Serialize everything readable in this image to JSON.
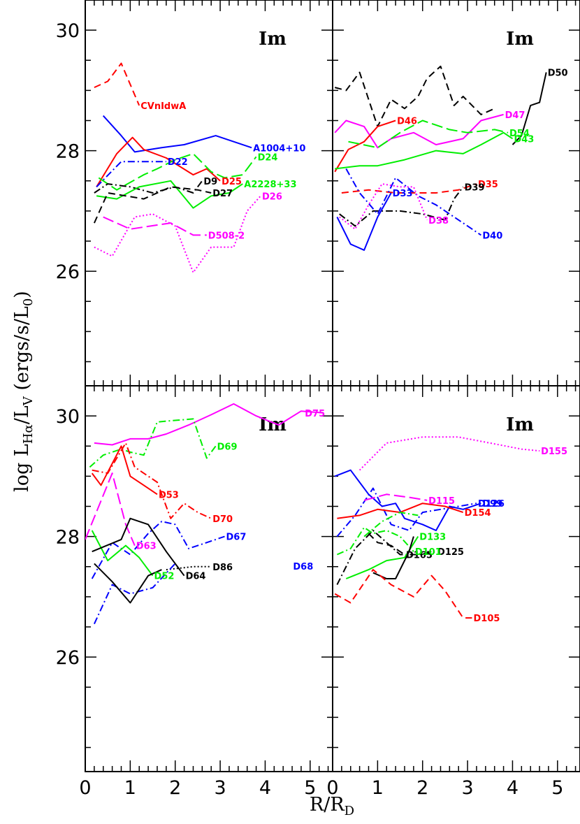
{
  "figure": {
    "ylabel": "log L_Hα/L_V (ergs/s/L_0)",
    "xlabel": "R/R_D"
  },
  "colors": {
    "black": "#000000",
    "red": "#ff0000",
    "blue": "#0000ff",
    "green": "#00ee00",
    "magenta": "#ff00ff"
  },
  "chart_data": [
    {
      "type": "line",
      "panel_label": "Im",
      "xlim": [
        0,
        5.5
      ],
      "ylim": [
        24.1,
        30.5
      ],
      "xticks": [
        "0",
        "1",
        "2",
        "3",
        "4",
        "5"
      ],
      "yticks": [
        "26",
        "28",
        "30"
      ],
      "series": [
        {
          "name": "CVnIdwA",
          "color": "red",
          "dash": "dashed",
          "x": [
            0.2,
            0.5,
            0.8,
            1.2
          ],
          "y": [
            29.05,
            29.15,
            29.45,
            28.75
          ]
        },
        {
          "name": "A1004+10",
          "color": "blue",
          "dash": "solid",
          "x": [
            0.4,
            0.8,
            1.1,
            1.7,
            2.2,
            2.9,
            3.7
          ],
          "y": [
            28.58,
            28.25,
            27.98,
            28.05,
            28.1,
            28.25,
            28.05
          ]
        },
        {
          "name": "D25",
          "color": "red",
          "dash": "solid",
          "x": [
            0.25,
            0.7,
            1.05,
            1.3,
            1.8,
            2.4,
            2.7,
            3.0
          ],
          "y": [
            27.4,
            27.95,
            28.22,
            28.02,
            27.88,
            27.6,
            27.7,
            27.5
          ]
        },
        {
          "name": "D22",
          "color": "blue",
          "dash": "dashdot",
          "x": [
            0.25,
            0.8,
            1.4,
            1.8
          ],
          "y": [
            27.4,
            27.82,
            27.82,
            27.82
          ]
        },
        {
          "name": "D24",
          "color": "green",
          "dash": "longdash",
          "x": [
            0.3,
            0.7,
            1.3,
            1.6,
            2.0,
            2.4,
            2.8,
            3.1,
            3.5,
            3.8
          ],
          "y": [
            27.55,
            27.35,
            27.6,
            27.7,
            27.85,
            27.95,
            27.65,
            27.55,
            27.6,
            27.9
          ]
        },
        {
          "name": "D9",
          "color": "black",
          "dash": "dashdot",
          "x": [
            0.2,
            0.5,
            1.0,
            1.5,
            2.0,
            2.4,
            2.6
          ],
          "y": [
            27.3,
            27.45,
            27.4,
            27.3,
            27.4,
            27.3,
            27.5
          ]
        },
        {
          "name": "A2228+33",
          "color": "green",
          "dash": "solid",
          "x": [
            0.25,
            0.7,
            1.2,
            1.9,
            2.4,
            2.8,
            3.2,
            3.5
          ],
          "y": [
            27.25,
            27.2,
            27.4,
            27.5,
            27.05,
            27.25,
            27.3,
            27.45
          ]
        },
        {
          "name": "D27",
          "color": "black",
          "dash": "dashed",
          "x": [
            0.2,
            0.5,
            0.9,
            1.3,
            1.9,
            2.5,
            2.8
          ],
          "y": [
            26.8,
            27.3,
            27.25,
            27.2,
            27.4,
            27.35,
            27.3
          ]
        },
        {
          "name": "D26",
          "color": "magenta",
          "dash": "dotted",
          "x": [
            0.2,
            0.6,
            1.1,
            1.5,
            2.0,
            2.4,
            2.8,
            3.3,
            3.6,
            3.9
          ],
          "y": [
            26.4,
            26.25,
            26.9,
            26.95,
            26.75,
            25.98,
            26.4,
            26.4,
            27.0,
            27.25
          ]
        },
        {
          "name": "D508-2",
          "color": "magenta",
          "dash": "longdash",
          "x": [
            0.4,
            1.0,
            1.9,
            2.4,
            2.7
          ],
          "y": [
            26.9,
            26.7,
            26.8,
            26.6,
            26.6
          ]
        }
      ]
    },
    {
      "type": "line",
      "panel_label": "Im",
      "xlim": [
        0,
        5.5
      ],
      "ylim": [
        24.1,
        30.5
      ],
      "xticks": [
        "0",
        "1",
        "2",
        "3",
        "4",
        "5"
      ],
      "yticks": [],
      "series": [
        {
          "name": "D50",
          "color": "black",
          "dash": "solid",
          "x": [
            4.0,
            4.2,
            4.4,
            4.6,
            4.75
          ],
          "y": [
            28.1,
            28.25,
            28.75,
            28.8,
            29.3
          ]
        },
        {
          "name": "",
          "color": "black",
          "dash": "dashed",
          "x": [
            0.05,
            0.3,
            0.6,
            1.0,
            1.3,
            1.6,
            1.9,
            2.1,
            2.4,
            2.7,
            2.9,
            3.3,
            3.6
          ],
          "y": [
            29.05,
            29.0,
            29.3,
            28.4,
            28.85,
            28.7,
            28.9,
            29.2,
            29.4,
            28.75,
            28.9,
            28.6,
            28.7
          ]
        },
        {
          "name": "D47",
          "color": "magenta",
          "dash": "solid",
          "x": [
            0.05,
            0.3,
            0.7,
            1.0,
            1.3,
            1.8,
            2.3,
            2.9,
            3.3,
            3.8
          ],
          "y": [
            28.3,
            28.5,
            28.4,
            28.05,
            28.2,
            28.3,
            28.1,
            28.2,
            28.5,
            28.6
          ]
        },
        {
          "name": "D46",
          "color": "red",
          "dash": "solid",
          "x": [
            0.05,
            0.35,
            0.7,
            1.0,
            1.4
          ],
          "y": [
            27.65,
            28.02,
            28.15,
            28.4,
            28.5
          ]
        },
        {
          "name": "D54",
          "color": "green",
          "dash": "longdash",
          "x": [
            0.35,
            1.0,
            1.5,
            2.0,
            2.6,
            3.0,
            3.6,
            3.9
          ],
          "y": [
            28.15,
            28.05,
            28.3,
            28.5,
            28.35,
            28.3,
            28.35,
            28.3
          ]
        },
        {
          "name": "D43",
          "color": "green",
          "dash": "solid",
          "x": [
            0.05,
            0.6,
            1.0,
            1.6,
            2.3,
            2.9,
            3.3,
            3.8,
            4.0
          ],
          "y": [
            27.7,
            27.75,
            27.75,
            27.85,
            28.0,
            27.95,
            28.1,
            28.3,
            28.2
          ]
        },
        {
          "name": "D35",
          "color": "red",
          "dash": "dashed",
          "x": [
            0.2,
            0.8,
            1.4,
            1.9,
            2.3,
            2.8,
            3.2
          ],
          "y": [
            27.3,
            27.35,
            27.3,
            27.3,
            27.3,
            27.35,
            27.45
          ]
        },
        {
          "name": "D39",
          "color": "black",
          "dash": "dashdot",
          "x": [
            0.15,
            0.5,
            0.9,
            1.5,
            2.0,
            2.5,
            2.7,
            2.9
          ],
          "y": [
            26.95,
            26.75,
            27.0,
            27.0,
            26.95,
            26.85,
            27.2,
            27.4
          ]
        },
        {
          "name": "D33",
          "color": "blue",
          "dash": "solid",
          "x": [
            0.1,
            0.4,
            0.7,
            1.0,
            1.3
          ],
          "y": [
            26.9,
            26.45,
            26.35,
            26.9,
            27.3
          ]
        },
        {
          "name": "D40",
          "color": "blue",
          "dash": "dashdot",
          "x": [
            0.3,
            0.6,
            1.0,
            1.4,
            1.9,
            2.3,
            2.9,
            3.3
          ],
          "y": [
            27.7,
            27.3,
            26.95,
            27.55,
            27.25,
            27.1,
            26.8,
            26.6
          ]
        },
        {
          "name": "D38",
          "color": "magenta",
          "dash": "dotted",
          "x": [
            0.15,
            0.5,
            0.8,
            1.1,
            1.5,
            1.8,
            2.1
          ],
          "y": [
            26.9,
            26.7,
            27.1,
            27.45,
            27.4,
            27.4,
            26.85
          ]
        }
      ]
    },
    {
      "type": "line",
      "panel_label": "Im",
      "xlim": [
        0,
        5.5
      ],
      "ylim": [
        24.1,
        30.5
      ],
      "xticks": [
        "0",
        "1",
        "2",
        "3",
        "4",
        "5"
      ],
      "yticks": [
        "26",
        "28",
        "30"
      ],
      "series": [
        {
          "name": "D75",
          "color": "magenta",
          "dash": "solid",
          "x": [
            0.2,
            0.6,
            1.0,
            1.4,
            1.8,
            2.3,
            2.8,
            3.3,
            3.8,
            4.3,
            4.8,
            5.3
          ],
          "y": [
            29.55,
            29.52,
            29.62,
            29.62,
            29.7,
            29.85,
            30.02,
            30.2,
            30.0,
            29.85,
            30.08,
            30.05
          ]
        },
        {
          "name": "D69",
          "color": "green",
          "dash": "dashdot",
          "x": [
            0.1,
            0.4,
            0.8,
            1.0,
            1.3,
            1.6,
            1.9,
            2.4,
            2.7,
            2.9
          ],
          "y": [
            29.15,
            29.35,
            29.45,
            29.4,
            29.35,
            29.9,
            29.92,
            29.95,
            29.3,
            29.5
          ]
        },
        {
          "name": "D53",
          "color": "red",
          "dash": "solid",
          "x": [
            0.15,
            0.35,
            0.8,
            1.0,
            1.3,
            1.6
          ],
          "y": [
            29.05,
            28.85,
            29.5,
            29.0,
            28.85,
            28.7
          ]
        },
        {
          "name": "D70",
          "color": "red",
          "dash": "dashdot",
          "x": [
            0.15,
            0.5,
            0.9,
            1.1,
            1.6,
            1.9,
            2.2,
            2.5,
            2.8
          ],
          "y": [
            29.1,
            29.05,
            29.55,
            29.15,
            28.9,
            28.3,
            28.55,
            28.4,
            28.3
          ]
        },
        {
          "name": "D63",
          "color": "magenta",
          "dash": "longdash",
          "x": [
            0.0,
            0.3,
            0.6,
            0.9,
            1.1
          ],
          "y": [
            27.95,
            28.5,
            29.05,
            28.2,
            27.85
          ]
        },
        {
          "name": "D67",
          "color": "blue",
          "dash": "dashdot",
          "x": [
            0.15,
            0.6,
            1.0,
            1.4,
            1.7,
            2.0,
            2.3,
            2.7,
            3.1
          ],
          "y": [
            27.3,
            27.9,
            27.7,
            28.05,
            28.25,
            28.2,
            27.8,
            27.9,
            28.0
          ]
        },
        {
          "name": "D52",
          "color": "green",
          "dash": "solid",
          "x": [
            0.15,
            0.5,
            0.9,
            1.2,
            1.5
          ],
          "y": [
            28.1,
            27.6,
            27.85,
            27.65,
            27.35
          ]
        },
        {
          "name": "D64",
          "color": "black",
          "dash": "solid",
          "x": [
            0.15,
            0.8,
            1.0,
            1.4,
            1.8,
            2.2
          ],
          "y": [
            27.75,
            27.95,
            28.3,
            28.2,
            27.75,
            27.35
          ]
        },
        {
          "name": "D86",
          "color": "black",
          "dash": "dotted",
          "x": [
            1.8,
            2.4,
            2.8
          ],
          "y": [
            27.45,
            27.5,
            27.5
          ]
        },
        {
          "name": "",
          "color": "blue",
          "dash": "dashdot",
          "x": [
            0.2,
            0.6,
            1.0,
            1.5,
            2.0
          ],
          "y": [
            26.55,
            27.2,
            27.05,
            27.15,
            27.55
          ]
        },
        {
          "name": "",
          "color": "black",
          "dash": "solid",
          "x": [
            0.2,
            0.6,
            1.0,
            1.4,
            1.7
          ],
          "y": [
            27.55,
            27.25,
            26.9,
            27.35,
            27.45
          ]
        }
      ]
    },
    {
      "type": "line",
      "panel_label": "Im",
      "xlim": [
        0,
        5.5
      ],
      "ylim": [
        24.1,
        30.5
      ],
      "xticks": [
        "0",
        "1",
        "2",
        "3",
        "4",
        "5"
      ],
      "yticks": [],
      "series": [
        {
          "name": "D155",
          "color": "magenta",
          "dash": "dotted",
          "x": [
            0.6,
            1.2,
            2.0,
            2.8,
            3.5,
            4.2,
            4.6
          ],
          "y": [
            29.1,
            29.55,
            29.65,
            29.65,
            29.55,
            29.45,
            29.42
          ]
        },
        {
          "name": "D99",
          "color": "blue",
          "dash": "solid",
          "x": [
            0.05,
            0.4,
            0.8,
            1.1,
            1.4,
            1.6,
            2.0,
            2.3,
            2.6,
            2.9,
            3.3
          ],
          "y": [
            29.0,
            29.1,
            28.7,
            28.5,
            28.55,
            28.3,
            28.2,
            28.1,
            28.5,
            28.45,
            28.55
          ]
        },
        {
          "name": "D126",
          "color": "blue",
          "dash": "dashdot",
          "x": [
            0.1,
            0.5,
            0.9,
            1.3,
            1.7,
            2.0,
            2.4,
            2.8,
            3.2
          ],
          "y": [
            28.0,
            28.35,
            28.8,
            28.2,
            28.1,
            28.4,
            28.45,
            28.5,
            28.55
          ]
        },
        {
          "name": "D115",
          "color": "magenta",
          "dash": "longdash",
          "x": [
            0.7,
            1.2,
            1.7,
            2.1
          ],
          "y": [
            28.6,
            28.7,
            28.65,
            28.6
          ]
        },
        {
          "name": "D154",
          "color": "red",
          "dash": "solid",
          "x": [
            0.1,
            0.6,
            1.0,
            1.5,
            2.0,
            2.5,
            2.9
          ],
          "y": [
            28.3,
            28.35,
            28.45,
            28.4,
            28.55,
            28.5,
            28.4
          ]
        },
        {
          "name": "D125",
          "color": "black",
          "dash": "dashdot",
          "x": [
            0.1,
            0.5,
            0.9,
            1.2,
            1.5,
            1.9,
            2.3
          ],
          "y": [
            27.2,
            27.8,
            28.1,
            27.9,
            27.7,
            27.7,
            27.75
          ]
        },
        {
          "name": "D165",
          "color": "black",
          "dash": "dashed",
          "x": [
            0.8,
            1.0,
            1.3,
            1.5,
            1.6
          ],
          "y": [
            28.05,
            27.9,
            27.85,
            27.75,
            27.7
          ]
        },
        {
          "name": "D101",
          "color": "green",
          "dash": "dashdot",
          "x": [
            0.1,
            0.4,
            0.7,
            0.9,
            1.2,
            1.5,
            1.8
          ],
          "y": [
            27.7,
            27.8,
            28.15,
            28.05,
            28.1,
            28.0,
            27.75
          ]
        },
        {
          "name": "D133",
          "color": "green",
          "dash": "solid",
          "x": [
            0.3,
            0.8,
            1.2,
            1.6,
            1.9
          ],
          "y": [
            27.3,
            27.45,
            27.6,
            27.65,
            28.0
          ]
        },
        {
          "name": "",
          "color": "green",
          "dash": "dashdot",
          "x": [
            0.7,
            1.1,
            1.5,
            1.9
          ],
          "y": [
            28.0,
            28.25,
            28.4,
            28.35
          ]
        },
        {
          "name": "",
          "color": "black",
          "dash": "solid",
          "x": [
            0.9,
            1.2,
            1.4,
            1.7,
            1.8
          ],
          "y": [
            27.4,
            27.3,
            27.3,
            27.75,
            28.0
          ]
        },
        {
          "name": "D105",
          "color": "red",
          "dash": "dashed",
          "x": [
            0.05,
            0.4,
            0.9,
            1.3,
            1.8,
            2.2,
            2.5,
            2.9,
            3.1
          ],
          "y": [
            27.05,
            26.9,
            27.45,
            27.2,
            27.0,
            27.35,
            27.1,
            26.65,
            26.65
          ]
        },
        {
          "name": "D68",
          "color": "blue",
          "dash": "dashdot",
          "x": [
            -0.4,
            0.0
          ],
          "y": [
            27.45,
            27.75
          ]
        }
      ]
    }
  ]
}
